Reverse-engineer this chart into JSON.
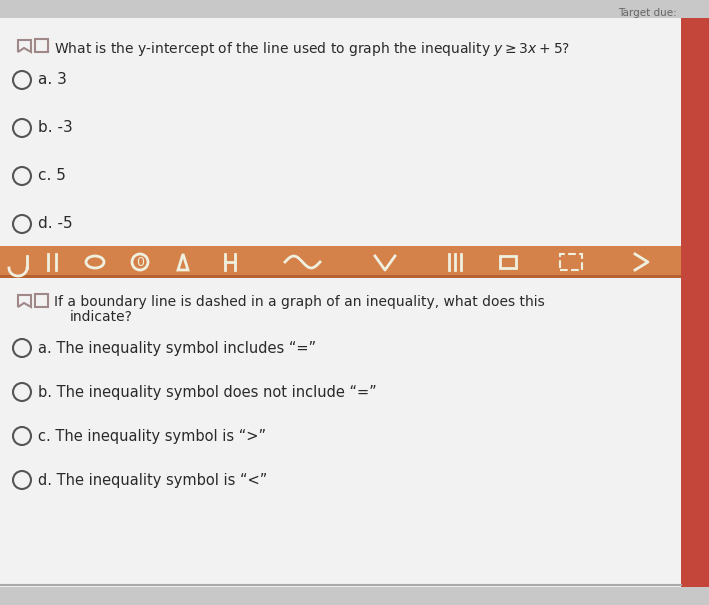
{
  "bg_color": "#d0d0d0",
  "content_bg": "#f2f2f2",
  "divider_color": "#d4824a",
  "text_color": "#2a2a2a",
  "icon_color": "#888888",
  "right_bar_color": "#c0392b",
  "question1_line1": "What is the y-intercept of the line used to graph the inequality $y \\geq 3x + 5$?",
  "q1_options": [
    "a. 3",
    "b. -3",
    "c. 5",
    "d. -5"
  ],
  "question2_line1": "If a boundary line is dashed in a graph of an inequality, what does this",
  "question2_line2": "indicate?",
  "q2_options": [
    "a. The inequality symbol includes “=”",
    "b. The inequality symbol does not include “=”",
    "c. The inequality symbol is “>”",
    "d. The inequality symbol is “<”"
  ],
  "figsize": [
    7.09,
    6.05
  ],
  "dpi": 100,
  "target_due_text": "Target due:"
}
